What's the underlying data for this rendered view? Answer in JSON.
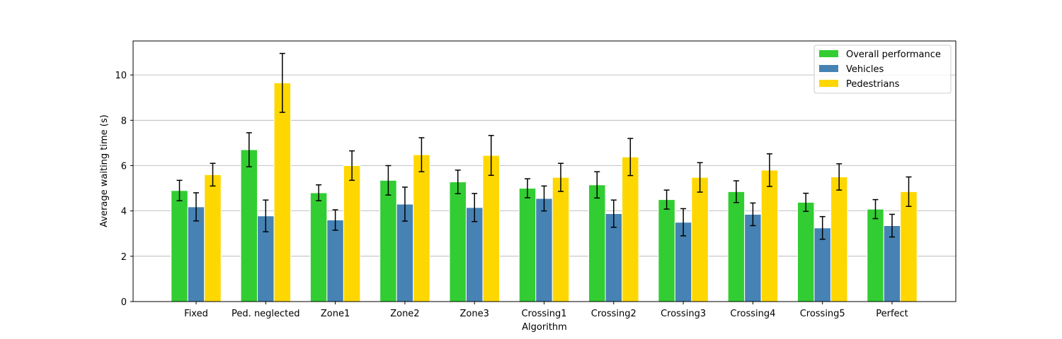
{
  "chart_data": {
    "type": "bar",
    "title": "",
    "xlabel": "Algorithm",
    "ylabel": "Average waiting time (s)",
    "ylim": [
      0,
      11.5
    ],
    "yticks": [
      0,
      2,
      4,
      6,
      8,
      10
    ],
    "grid": "horizontal",
    "legend_position": "top-right",
    "categories": [
      "Fixed",
      "Ped. neglected",
      "Zone1",
      "Zone2",
      "Zone3",
      "Crossing1",
      "Crossing2",
      "Crossing3",
      "Crossing4",
      "Crossing5",
      "Perfect"
    ],
    "series": [
      {
        "name": "Overall performance",
        "color": "#32cd32",
        "values": [
          4.9,
          6.7,
          4.8,
          5.35,
          5.28,
          5.0,
          5.15,
          4.5,
          4.85,
          4.38,
          4.08
        ],
        "errors": [
          0.45,
          0.75,
          0.35,
          0.65,
          0.52,
          0.42,
          0.58,
          0.42,
          0.48,
          0.4,
          0.42
        ]
      },
      {
        "name": "Vehicles",
        "color": "#4682b4",
        "values": [
          4.18,
          3.78,
          3.6,
          4.3,
          4.15,
          4.55,
          3.88,
          3.5,
          3.85,
          3.25,
          3.35
        ],
        "errors": [
          0.62,
          0.7,
          0.45,
          0.75,
          0.62,
          0.55,
          0.6,
          0.6,
          0.5,
          0.5,
          0.5
        ]
      },
      {
        "name": "Pedestrians",
        "color": "#ffd700",
        "values": [
          5.6,
          9.65,
          6.0,
          6.48,
          6.45,
          5.48,
          6.38,
          5.48,
          5.8,
          5.5,
          4.85
        ],
        "errors": [
          0.5,
          1.3,
          0.65,
          0.75,
          0.88,
          0.62,
          0.82,
          0.65,
          0.72,
          0.58,
          0.65
        ]
      }
    ]
  }
}
